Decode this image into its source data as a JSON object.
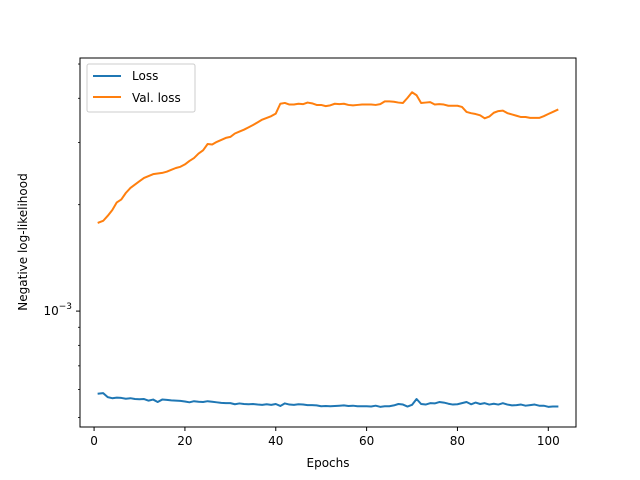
{
  "chart_data": {
    "type": "line",
    "title": "",
    "xlabel": "Epochs",
    "ylabel": "Negative log-likelihood",
    "xlim": [
      -3.1,
      106.1
    ],
    "ylim": [
      0.00047,
      0.0052
    ],
    "yscale": "log",
    "xticks": [
      0,
      20,
      40,
      60,
      80,
      100
    ],
    "xtick_labels": [
      "0",
      "20",
      "40",
      "60",
      "80",
      "100"
    ],
    "yticks": [
      0.001
    ],
    "ytick_labels": [
      {
        "base": "10",
        "exp": "−3"
      }
    ],
    "grid": false,
    "legend": {
      "position": "top-left"
    },
    "series": [
      {
        "name": "Loss",
        "color": "#1f77b4",
        "x": [
          1,
          2,
          3,
          4,
          5,
          6,
          7,
          8,
          9,
          10,
          11,
          12,
          13,
          14,
          15,
          16,
          17,
          18,
          19,
          20,
          21,
          22,
          23,
          24,
          25,
          26,
          27,
          28,
          29,
          30,
          31,
          32,
          33,
          34,
          35,
          36,
          37,
          38,
          39,
          40,
          41,
          42,
          43,
          44,
          45,
          46,
          47,
          48,
          49,
          50,
          51,
          52,
          53,
          54,
          55,
          56,
          57,
          58,
          59,
          60,
          61,
          62,
          63,
          64,
          65,
          66,
          67,
          68,
          69,
          70,
          71,
          72,
          73,
          74,
          75,
          76,
          77,
          78,
          79,
          80,
          81,
          82,
          83,
          84,
          85,
          86,
          87,
          88,
          89,
          90,
          91,
          92,
          93,
          94,
          95,
          96,
          97,
          98,
          99,
          100,
          101,
          102
        ],
        "y": [
          0.000584,
          0.000586,
          0.000571,
          0.000567,
          0.000569,
          0.000568,
          0.000565,
          0.000567,
          0.000564,
          0.000563,
          0.000564,
          0.000558,
          0.000562,
          0.000553,
          0.000562,
          0.000561,
          0.000559,
          0.000558,
          0.000557,
          0.000555,
          0.000552,
          0.000556,
          0.000554,
          0.000553,
          0.000556,
          0.000554,
          0.000552,
          0.00055,
          0.000549,
          0.000549,
          0.000545,
          0.000548,
          0.000546,
          0.000545,
          0.000546,
          0.000544,
          0.000543,
          0.000545,
          0.000543,
          0.000546,
          0.000539,
          0.000548,
          0.000544,
          0.000543,
          0.000545,
          0.000544,
          0.000542,
          0.000542,
          0.000541,
          0.000538,
          0.000539,
          0.000538,
          0.000539,
          0.00054,
          0.000541,
          0.000539,
          0.00054,
          0.000538,
          0.000538,
          0.000538,
          0.000537,
          0.00054,
          0.000536,
          0.000538,
          0.000538,
          0.000541,
          0.000546,
          0.000544,
          0.000537,
          0.000543,
          0.000564,
          0.000546,
          0.000544,
          0.000549,
          0.000548,
          0.000553,
          0.000551,
          0.000547,
          0.000544,
          0.000545,
          0.000549,
          0.000553,
          0.000545,
          0.000551,
          0.000546,
          0.000549,
          0.000544,
          0.000547,
          0.000544,
          0.000549,
          0.000544,
          0.000541,
          0.000542,
          0.000544,
          0.00054,
          0.000542,
          0.000544,
          0.00054,
          0.00054,
          0.000536,
          0.000537,
          0.000537
        ]
      },
      {
        "name": "Val. loss",
        "color": "#ff7f0e",
        "x": [
          1,
          2,
          3,
          4,
          5,
          6,
          7,
          8,
          9,
          10,
          11,
          12,
          13,
          14,
          15,
          16,
          17,
          18,
          19,
          20,
          21,
          22,
          23,
          24,
          25,
          26,
          27,
          28,
          29,
          30,
          31,
          32,
          33,
          34,
          35,
          36,
          37,
          38,
          39,
          40,
          41,
          42,
          43,
          44,
          45,
          46,
          47,
          48,
          49,
          50,
          51,
          52,
          53,
          54,
          55,
          56,
          57,
          58,
          59,
          60,
          61,
          62,
          63,
          64,
          65,
          66,
          67,
          68,
          69,
          70,
          71,
          72,
          73,
          74,
          75,
          76,
          77,
          78,
          79,
          80,
          81,
          82,
          83,
          84,
          85,
          86,
          87,
          88,
          89,
          90,
          91,
          92,
          93,
          94,
          95,
          96,
          97,
          98,
          99,
          100,
          101,
          102
        ],
        "y": [
          0.00178,
          0.0018,
          0.00186,
          0.00193,
          0.00203,
          0.00207,
          0.00216,
          0.00223,
          0.00228,
          0.00233,
          0.00238,
          0.00241,
          0.00244,
          0.00245,
          0.00246,
          0.00248,
          0.00251,
          0.00254,
          0.00256,
          0.0026,
          0.00266,
          0.00271,
          0.00279,
          0.00285,
          0.00297,
          0.00296,
          0.00301,
          0.00305,
          0.00309,
          0.00311,
          0.00318,
          0.00322,
          0.00326,
          0.00331,
          0.00336,
          0.00342,
          0.00348,
          0.00352,
          0.00356,
          0.00362,
          0.00386,
          0.00388,
          0.00384,
          0.00384,
          0.00386,
          0.00385,
          0.00389,
          0.00387,
          0.00383,
          0.00383,
          0.0038,
          0.00382,
          0.00386,
          0.00385,
          0.00386,
          0.00383,
          0.00382,
          0.00383,
          0.00384,
          0.00384,
          0.00384,
          0.00383,
          0.00385,
          0.00392,
          0.00392,
          0.00391,
          0.00389,
          0.00388,
          0.00401,
          0.00416,
          0.00408,
          0.00388,
          0.00389,
          0.0039,
          0.00384,
          0.00385,
          0.00384,
          0.00381,
          0.00381,
          0.00381,
          0.00378,
          0.00366,
          0.00363,
          0.00361,
          0.00358,
          0.00351,
          0.00355,
          0.00364,
          0.00368,
          0.00369,
          0.00363,
          0.0036,
          0.00357,
          0.00354,
          0.00354,
          0.00352,
          0.00352,
          0.00352,
          0.00356,
          0.00361,
          0.00366,
          0.00371
        ]
      }
    ]
  }
}
